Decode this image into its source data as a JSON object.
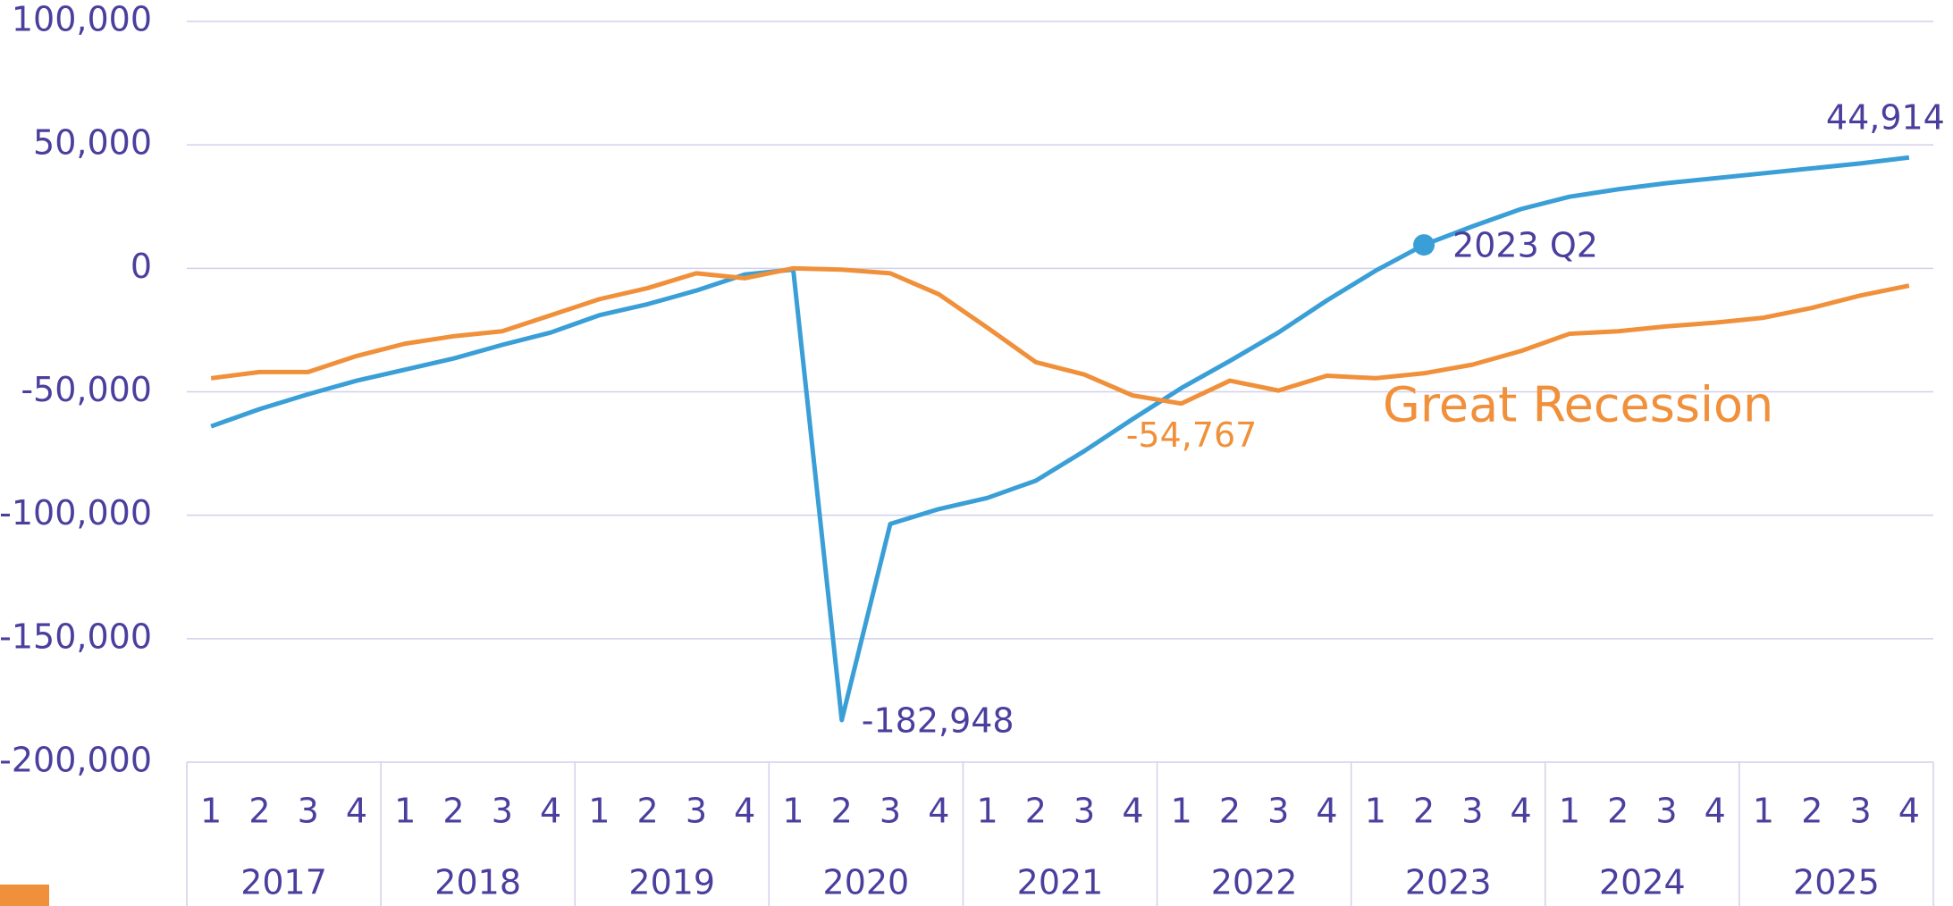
{
  "chart_data": {
    "type": "line",
    "categories": [
      "1",
      "2",
      "3",
      "4",
      "1",
      "2",
      "3",
      "4",
      "1",
      "2",
      "3",
      "4",
      "1",
      "2",
      "3",
      "4",
      "1",
      "2",
      "3",
      "4",
      "1",
      "2",
      "3",
      "4",
      "1",
      "2",
      "3",
      "4",
      "1",
      "2",
      "3",
      "4",
      "1",
      "2",
      "3",
      "4"
    ],
    "groups": [
      "2017",
      "2018",
      "2019",
      "2020",
      "2021",
      "2022",
      "2023",
      "2024",
      "2025"
    ],
    "series": [
      {
        "color": "#3a9fd6",
        "values": [
          -64000,
          -57000,
          -51000,
          -45500,
          -41000,
          -36500,
          -31000,
          -26000,
          -19000,
          -14500,
          -9000,
          -2500,
          -500,
          -182948,
          -103500,
          -97500,
          -93000,
          -86000,
          -74000,
          -61000,
          -48500,
          -37500,
          -26000,
          -13000,
          -1000,
          9500,
          17000,
          24000,
          29000,
          32000,
          34500,
          36500,
          38500,
          40500,
          42500,
          44914
        ],
        "value_labels": [
          null,
          null,
          null,
          null,
          null,
          null,
          null,
          null,
          null,
          null,
          null,
          null,
          null,
          "-182,948",
          null,
          null,
          null,
          null,
          null,
          null,
          null,
          null,
          null,
          null,
          null,
          null,
          null,
          null,
          null,
          null,
          null,
          null,
          null,
          null,
          null,
          "44,914"
        ]
      },
      {
        "name": "Great Recession",
        "color": "#f0903a",
        "values": [
          -44500,
          -42000,
          -42000,
          -35500,
          -30500,
          -27500,
          -25500,
          -19000,
          -12500,
          -8000,
          -2000,
          -4000,
          0,
          -500,
          -2000,
          -10500,
          -24000,
          -38000,
          -43000,
          -51500,
          -54767,
          -45500,
          -49500,
          -43500,
          -44500,
          -42500,
          -39000,
          -33500,
          -26500,
          -25500,
          -23500,
          -22000,
          -20000,
          -16000,
          -11000,
          -7000
        ],
        "value_labels": [
          null,
          null,
          null,
          null,
          null,
          null,
          null,
          null,
          null,
          null,
          null,
          null,
          null,
          null,
          null,
          null,
          null,
          null,
          null,
          null,
          "-54,767",
          null,
          null,
          null,
          null,
          null,
          null,
          null,
          null,
          null,
          null,
          null,
          null,
          null,
          null,
          null
        ]
      }
    ],
    "highlight": {
      "label": "2023 Q2",
      "series": 0,
      "index": 25
    },
    "ylim": [
      -200000,
      100000
    ],
    "yticks": [
      {
        "value": -200000,
        "label": "-200,000"
      },
      {
        "value": -150000,
        "label": "-150,000"
      },
      {
        "value": -100000,
        "label": "-100,000"
      },
      {
        "value": -50000,
        "label": "-50,000"
      },
      0,
      {
        "value": 50000,
        "label": "50,000"
      },
      {
        "value": 100000,
        "label": "100,000"
      }
    ],
    "grid": true
  }
}
